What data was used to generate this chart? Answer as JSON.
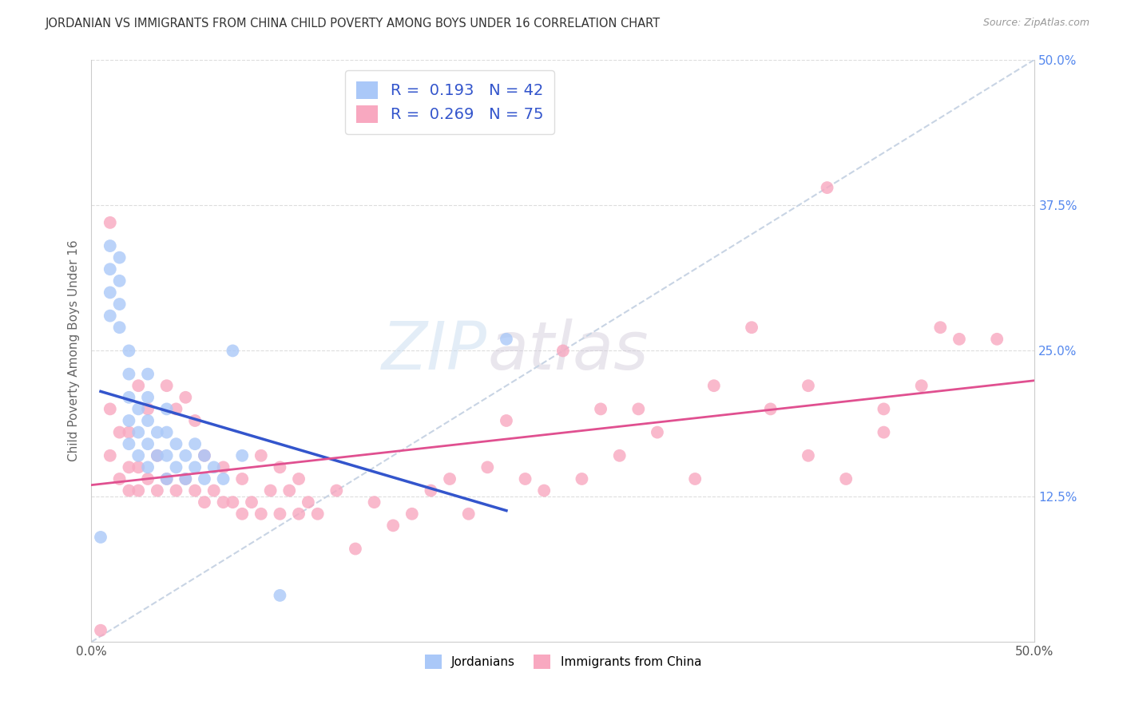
{
  "title": "JORDANIAN VS IMMIGRANTS FROM CHINA CHILD POVERTY AMONG BOYS UNDER 16 CORRELATION CHART",
  "source": "Source: ZipAtlas.com",
  "ylabel": "Child Poverty Among Boys Under 16",
  "xlim": [
    0.0,
    0.5
  ],
  "ylim": [
    0.0,
    0.5
  ],
  "xtick_values": [
    0.0,
    0.5
  ],
  "xtick_labels": [
    "0.0%",
    "50.0%"
  ],
  "right_ytick_values": [
    0.5,
    0.375,
    0.25,
    0.125
  ],
  "right_ytick_labels": [
    "50.0%",
    "37.5%",
    "25.0%",
    "12.5%"
  ],
  "hgrid_values": [
    0.125,
    0.25,
    0.375,
    0.5
  ],
  "watermark_zip": "ZIP",
  "watermark_atlas": "atlas",
  "jordanians_R": 0.193,
  "jordanians_N": 42,
  "china_R": 0.269,
  "china_N": 75,
  "jordanians_color": "#aac8f8",
  "china_color": "#f8a8c0",
  "jordanians_line_color": "#3355cc",
  "china_line_color": "#e05090",
  "diagonal_color": "#c8d4e4",
  "background_color": "#ffffff",
  "grid_color": "#dddddd",
  "jordanians_x": [
    0.005,
    0.01,
    0.01,
    0.01,
    0.01,
    0.015,
    0.015,
    0.015,
    0.015,
    0.02,
    0.02,
    0.02,
    0.02,
    0.02,
    0.025,
    0.025,
    0.025,
    0.03,
    0.03,
    0.03,
    0.03,
    0.03,
    0.035,
    0.035,
    0.04,
    0.04,
    0.04,
    0.04,
    0.045,
    0.045,
    0.05,
    0.05,
    0.055,
    0.055,
    0.06,
    0.06,
    0.065,
    0.07,
    0.075,
    0.08,
    0.1,
    0.22
  ],
  "jordanians_y": [
    0.09,
    0.28,
    0.3,
    0.32,
    0.34,
    0.27,
    0.29,
    0.31,
    0.33,
    0.17,
    0.19,
    0.21,
    0.23,
    0.25,
    0.16,
    0.18,
    0.2,
    0.15,
    0.17,
    0.19,
    0.21,
    0.23,
    0.16,
    0.18,
    0.14,
    0.16,
    0.18,
    0.2,
    0.15,
    0.17,
    0.14,
    0.16,
    0.15,
    0.17,
    0.14,
    0.16,
    0.15,
    0.14,
    0.25,
    0.16,
    0.04,
    0.26
  ],
  "china_x": [
    0.005,
    0.01,
    0.01,
    0.015,
    0.015,
    0.02,
    0.02,
    0.02,
    0.025,
    0.025,
    0.025,
    0.03,
    0.03,
    0.035,
    0.035,
    0.04,
    0.04,
    0.045,
    0.045,
    0.05,
    0.05,
    0.055,
    0.055,
    0.06,
    0.06,
    0.065,
    0.07,
    0.07,
    0.075,
    0.08,
    0.08,
    0.085,
    0.09,
    0.09,
    0.095,
    0.1,
    0.1,
    0.105,
    0.11,
    0.11,
    0.115,
    0.12,
    0.13,
    0.14,
    0.15,
    0.16,
    0.17,
    0.18,
    0.19,
    0.2,
    0.21,
    0.22,
    0.23,
    0.24,
    0.25,
    0.26,
    0.27,
    0.28,
    0.29,
    0.3,
    0.32,
    0.33,
    0.35,
    0.36,
    0.38,
    0.38,
    0.39,
    0.4,
    0.42,
    0.42,
    0.44,
    0.45,
    0.46,
    0.48,
    0.01
  ],
  "china_y": [
    0.01,
    0.16,
    0.2,
    0.14,
    0.18,
    0.13,
    0.15,
    0.18,
    0.13,
    0.15,
    0.22,
    0.14,
    0.2,
    0.13,
    0.16,
    0.14,
    0.22,
    0.13,
    0.2,
    0.14,
    0.21,
    0.13,
    0.19,
    0.12,
    0.16,
    0.13,
    0.12,
    0.15,
    0.12,
    0.11,
    0.14,
    0.12,
    0.11,
    0.16,
    0.13,
    0.11,
    0.15,
    0.13,
    0.11,
    0.14,
    0.12,
    0.11,
    0.13,
    0.08,
    0.12,
    0.1,
    0.11,
    0.13,
    0.14,
    0.11,
    0.15,
    0.19,
    0.14,
    0.13,
    0.25,
    0.14,
    0.2,
    0.16,
    0.2,
    0.18,
    0.14,
    0.22,
    0.27,
    0.2,
    0.22,
    0.16,
    0.39,
    0.14,
    0.2,
    0.18,
    0.22,
    0.27,
    0.26,
    0.26,
    0.36
  ]
}
